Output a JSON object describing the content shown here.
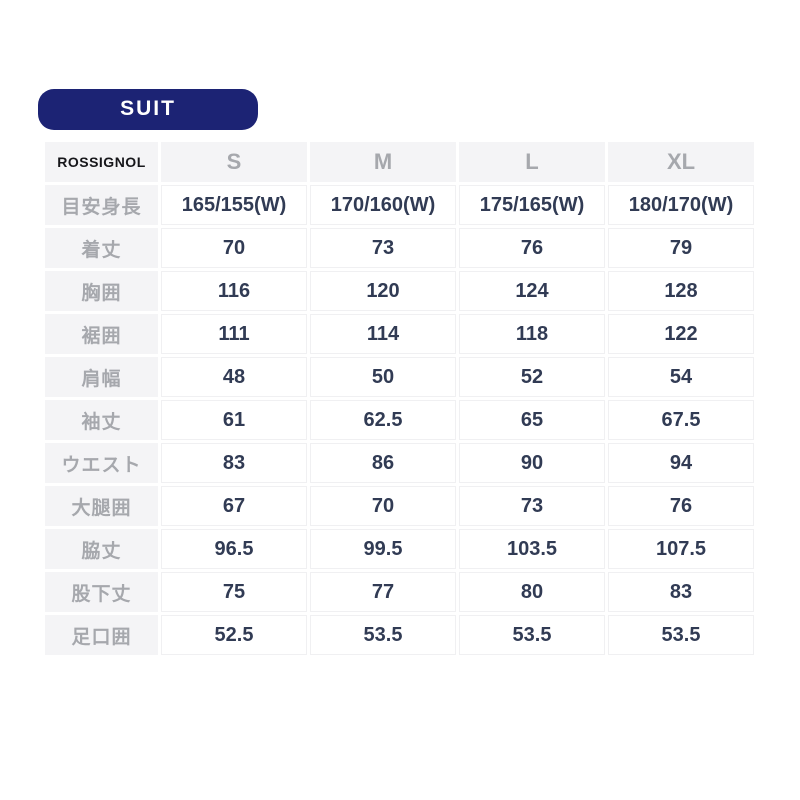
{
  "badge": {
    "label": "SUIT"
  },
  "chart_data": {
    "type": "table",
    "title": "SUIT",
    "brand": "ROSSIGNOL",
    "size_columns": [
      "S",
      "M",
      "L",
      "XL"
    ],
    "rows": [
      {
        "label": "目安身長",
        "values": [
          "165/155(W)",
          "170/160(W)",
          "175/165(W)",
          "180/170(W)"
        ]
      },
      {
        "label": "着丈",
        "values": [
          "70",
          "73",
          "76",
          "79"
        ]
      },
      {
        "label": "胸囲",
        "values": [
          "116",
          "120",
          "124",
          "128"
        ]
      },
      {
        "label": "裾囲",
        "values": [
          "111",
          "114",
          "118",
          "122"
        ]
      },
      {
        "label": "肩幅",
        "values": [
          "48",
          "50",
          "52",
          "54"
        ]
      },
      {
        "label": "袖丈",
        "values": [
          "61",
          "62.5",
          "65",
          "67.5"
        ]
      },
      {
        "label": "ウエスト",
        "values": [
          "83",
          "86",
          "90",
          "94"
        ]
      },
      {
        "label": "大腿囲",
        "values": [
          "67",
          "70",
          "73",
          "76"
        ]
      },
      {
        "label": "脇丈",
        "values": [
          "96.5",
          "99.5",
          "103.5",
          "107.5"
        ]
      },
      {
        "label": "股下丈",
        "values": [
          "75",
          "77",
          "80",
          "83"
        ]
      },
      {
        "label": "足口囲",
        "values": [
          "52.5",
          "53.5",
          "53.5",
          "53.5"
        ]
      }
    ]
  },
  "colors": {
    "badge_bg": "#1c2374",
    "badge_text": "#ffffff",
    "cell_gray_bg": "#f4f4f6",
    "muted_text": "#a6a8ad",
    "value_text": "#313b54",
    "grid_line": "#f0f0f2",
    "brand_text": "#16161a"
  }
}
